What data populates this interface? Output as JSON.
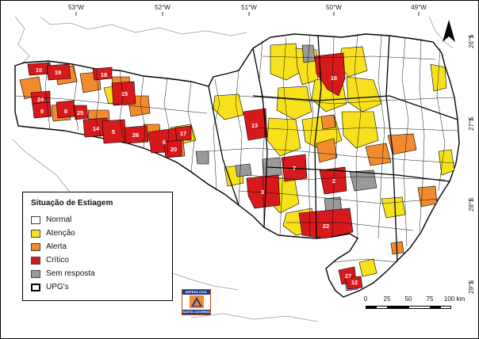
{
  "map": {
    "longitude_labels": [
      "53°W",
      "52°W",
      "51°W",
      "50°W",
      "49°W"
    ],
    "latitude_labels": [
      "26°S",
      "27°S",
      "28°S",
      "29°S"
    ]
  },
  "legend": {
    "title": "Situação de Estiagem",
    "items": [
      {
        "label": "Normal",
        "color": "#ffffff"
      },
      {
        "label": "Atenção",
        "color": "#f7e11c"
      },
      {
        "label": "Alerta",
        "color": "#f28a2e"
      },
      {
        "label": "Crítico",
        "color": "#d7191c"
      },
      {
        "label": "Sem resposta",
        "color": "#9a9a9a"
      },
      {
        "label": "UPG's",
        "color": "#000000"
      }
    ]
  },
  "critical_units": [
    "10",
    "19",
    "18",
    "24",
    "9",
    "8",
    "25",
    "15",
    "14",
    "5",
    "26",
    "6",
    "17",
    "20",
    "16",
    "13",
    "7",
    "2",
    "3",
    "22",
    "27",
    "12"
  ],
  "scale_bar": {
    "labels": [
      "0",
      "25",
      "50",
      "75",
      "100 km"
    ]
  },
  "logo": {
    "line1": "DEFESA CIVIL",
    "line2": "SANTA CATARINA"
  }
}
